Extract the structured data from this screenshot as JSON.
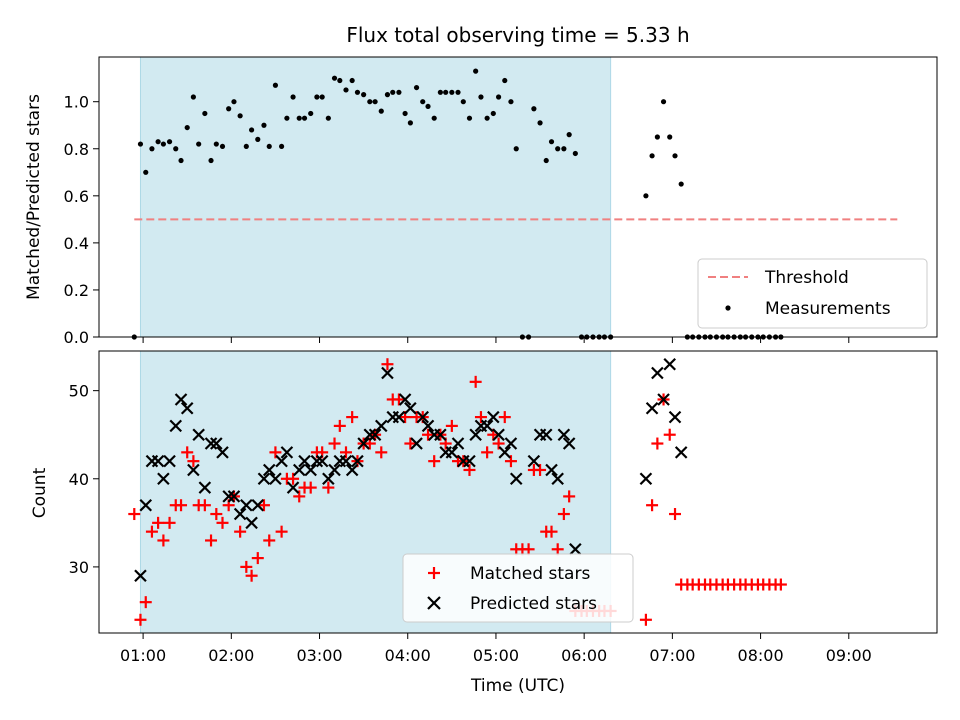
{
  "chart_data": {
    "title": "Flux total observing time = 5.33 h",
    "type": "scatter",
    "x_label": "Time (UTC)",
    "x_ticks": [
      "01:00",
      "02:00",
      "03:00",
      "04:00",
      "05:00",
      "06:00",
      "07:00",
      "08:00",
      "09:00"
    ],
    "x_tick_hours": [
      1,
      2,
      3,
      4,
      5,
      6,
      7,
      8,
      9
    ],
    "xlim": [
      0.5,
      10.0
    ],
    "shaded_interval_hours": [
      0.97,
      6.3
    ],
    "colors": {
      "shade": "#add8e6",
      "threshold": "#f08080",
      "matched": "#ff0000",
      "predicted": "#000000",
      "measurement": "#000000"
    },
    "top": {
      "ylabel": "Matched/Predicted stars",
      "ylim": [
        0,
        1.19
      ],
      "y_ticks": [
        "0.0",
        "0.2",
        "0.4",
        "0.6",
        "0.8",
        "1.0"
      ],
      "y_tick_values": [
        0,
        0.2,
        0.4,
        0.6,
        0.8,
        1.0
      ],
      "threshold": {
        "name": "Threshold",
        "value": 0.5,
        "x_range": [
          0.9,
          9.55
        ]
      },
      "measurements_name": "Measurements",
      "legend_position": "lower-right",
      "measurements": [
        [
          0.9,
          0.0
        ],
        [
          0.97,
          0.82
        ],
        [
          1.03,
          0.7
        ],
        [
          1.1,
          0.8
        ],
        [
          1.17,
          0.83
        ],
        [
          1.23,
          0.82
        ],
        [
          1.3,
          0.83
        ],
        [
          1.37,
          0.8
        ],
        [
          1.43,
          0.75
        ],
        [
          1.5,
          0.89
        ],
        [
          1.57,
          1.02
        ],
        [
          1.63,
          0.82
        ],
        [
          1.7,
          0.95
        ],
        [
          1.77,
          0.75
        ],
        [
          1.83,
          0.82
        ],
        [
          1.9,
          0.81
        ],
        [
          1.97,
          0.97
        ],
        [
          2.03,
          1.0
        ],
        [
          2.1,
          0.94
        ],
        [
          2.17,
          0.81
        ],
        [
          2.23,
          0.88
        ],
        [
          2.3,
          0.84
        ],
        [
          2.37,
          0.9
        ],
        [
          2.43,
          0.81
        ],
        [
          2.5,
          1.07
        ],
        [
          2.57,
          0.81
        ],
        [
          2.63,
          0.93
        ],
        [
          2.7,
          1.02
        ],
        [
          2.77,
          0.93
        ],
        [
          2.83,
          0.93
        ],
        [
          2.9,
          0.95
        ],
        [
          2.97,
          1.02
        ],
        [
          3.03,
          1.02
        ],
        [
          3.1,
          0.93
        ],
        [
          3.17,
          1.1
        ],
        [
          3.23,
          1.09
        ],
        [
          3.3,
          1.05
        ],
        [
          3.37,
          1.09
        ],
        [
          3.43,
          1.04
        ],
        [
          3.5,
          1.03
        ],
        [
          3.57,
          1.0
        ],
        [
          3.63,
          1.0
        ],
        [
          3.7,
          0.96
        ],
        [
          3.77,
          1.03
        ],
        [
          3.83,
          1.04
        ],
        [
          3.9,
          1.04
        ],
        [
          3.97,
          0.95
        ],
        [
          4.03,
          0.91
        ],
        [
          4.1,
          1.06
        ],
        [
          4.17,
          1.0
        ],
        [
          4.23,
          0.98
        ],
        [
          4.3,
          0.93
        ],
        [
          4.37,
          1.04
        ],
        [
          4.43,
          1.04
        ],
        [
          4.5,
          1.04
        ],
        [
          4.57,
          1.04
        ],
        [
          4.63,
          1.0
        ],
        [
          4.7,
          0.93
        ],
        [
          4.77,
          1.13
        ],
        [
          4.83,
          1.02
        ],
        [
          4.9,
          0.93
        ],
        [
          4.97,
          0.95
        ],
        [
          5.03,
          1.02
        ],
        [
          5.1,
          1.09
        ],
        [
          5.17,
          1.0
        ],
        [
          5.23,
          0.8
        ],
        [
          5.3,
          0.0
        ],
        [
          5.37,
          0.0
        ],
        [
          5.43,
          0.97
        ],
        [
          5.5,
          0.91
        ],
        [
          5.57,
          0.75
        ],
        [
          5.63,
          0.83
        ],
        [
          5.7,
          0.8
        ],
        [
          5.77,
          0.8
        ],
        [
          5.83,
          0.86
        ],
        [
          5.9,
          0.78
        ],
        [
          5.97,
          0.0
        ],
        [
          6.03,
          0.0
        ],
        [
          6.1,
          0.0
        ],
        [
          6.17,
          0.0
        ],
        [
          6.23,
          0.0
        ],
        [
          6.3,
          0.0
        ],
        [
          6.7,
          0.6
        ],
        [
          6.77,
          0.77
        ],
        [
          6.83,
          0.85
        ],
        [
          6.9,
          1.0
        ],
        [
          6.97,
          0.85
        ],
        [
          7.03,
          0.77
        ],
        [
          7.1,
          0.65
        ],
        [
          7.17,
          0.0
        ],
        [
          7.23,
          0.0
        ],
        [
          7.3,
          0.0
        ],
        [
          7.37,
          0.0
        ],
        [
          7.43,
          0.0
        ],
        [
          7.5,
          0.0
        ],
        [
          7.57,
          0.0
        ],
        [
          7.63,
          0.0
        ],
        [
          7.7,
          0.0
        ],
        [
          7.77,
          0.0
        ],
        [
          7.83,
          0.0
        ],
        [
          7.9,
          0.0
        ],
        [
          7.97,
          0.0
        ],
        [
          8.03,
          0.0
        ],
        [
          8.1,
          0.0
        ],
        [
          8.17,
          0.0
        ],
        [
          8.23,
          0.0
        ]
      ]
    },
    "bottom": {
      "ylabel": "Count",
      "ylim": [
        22.5,
        54.5
      ],
      "y_ticks": [
        "30",
        "40",
        "50"
      ],
      "y_tick_values": [
        30,
        40,
        50
      ],
      "legend_position": "lower-center",
      "matched_name": "Matched stars",
      "predicted_name": "Predicted stars",
      "matched": [
        [
          0.9,
          36
        ],
        [
          0.97,
          24
        ],
        [
          1.03,
          26
        ],
        [
          1.1,
          34
        ],
        [
          1.17,
          35
        ],
        [
          1.23,
          33
        ],
        [
          1.3,
          35
        ],
        [
          1.37,
          37
        ],
        [
          1.43,
          37
        ],
        [
          1.5,
          43
        ],
        [
          1.57,
          42
        ],
        [
          1.63,
          37
        ],
        [
          1.7,
          37
        ],
        [
          1.77,
          33
        ],
        [
          1.83,
          36
        ],
        [
          1.9,
          35
        ],
        [
          1.97,
          37
        ],
        [
          2.03,
          38
        ],
        [
          2.1,
          34
        ],
        [
          2.17,
          30
        ],
        [
          2.23,
          29
        ],
        [
          2.3,
          31
        ],
        [
          2.37,
          37
        ],
        [
          2.43,
          33
        ],
        [
          2.5,
          43
        ],
        [
          2.57,
          34
        ],
        [
          2.63,
          40
        ],
        [
          2.7,
          40
        ],
        [
          2.77,
          38
        ],
        [
          2.83,
          39
        ],
        [
          2.9,
          39
        ],
        [
          2.97,
          43
        ],
        [
          3.03,
          43
        ],
        [
          3.1,
          39
        ],
        [
          3.17,
          44
        ],
        [
          3.23,
          46
        ],
        [
          3.3,
          43
        ],
        [
          3.37,
          47
        ],
        [
          3.43,
          42
        ],
        [
          3.5,
          44
        ],
        [
          3.57,
          44
        ],
        [
          3.63,
          45
        ],
        [
          3.7,
          43
        ],
        [
          3.77,
          53
        ],
        [
          3.83,
          49
        ],
        [
          3.9,
          49
        ],
        [
          3.97,
          47
        ],
        [
          4.03,
          44
        ],
        [
          4.1,
          47
        ],
        [
          4.17,
          47
        ],
        [
          4.23,
          45
        ],
        [
          4.3,
          42
        ],
        [
          4.37,
          45
        ],
        [
          4.43,
          44
        ],
        [
          4.5,
          46
        ],
        [
          4.57,
          42
        ],
        [
          4.63,
          42
        ],
        [
          4.7,
          41
        ],
        [
          4.77,
          51
        ],
        [
          4.83,
          47
        ],
        [
          4.9,
          43
        ],
        [
          4.97,
          45
        ],
        [
          5.03,
          44
        ],
        [
          5.1,
          47
        ],
        [
          5.17,
          42
        ],
        [
          5.23,
          32
        ],
        [
          5.3,
          32
        ],
        [
          5.37,
          32
        ],
        [
          5.43,
          41
        ],
        [
          5.5,
          41
        ],
        [
          5.57,
          34
        ],
        [
          5.63,
          34
        ],
        [
          5.7,
          32
        ],
        [
          5.77,
          36
        ],
        [
          5.83,
          38
        ],
        [
          5.9,
          25
        ],
        [
          5.97,
          25
        ],
        [
          6.03,
          25
        ],
        [
          6.1,
          25
        ],
        [
          6.17,
          25
        ],
        [
          6.23,
          25
        ],
        [
          6.3,
          25
        ],
        [
          6.7,
          24
        ],
        [
          6.77,
          37
        ],
        [
          6.83,
          44
        ],
        [
          6.9,
          49
        ],
        [
          6.97,
          45
        ],
        [
          7.03,
          36
        ],
        [
          7.1,
          28
        ],
        [
          7.17,
          28
        ],
        [
          7.23,
          28
        ],
        [
          7.3,
          28
        ],
        [
          7.37,
          28
        ],
        [
          7.43,
          28
        ],
        [
          7.5,
          28
        ],
        [
          7.57,
          28
        ],
        [
          7.63,
          28
        ],
        [
          7.7,
          28
        ],
        [
          7.77,
          28
        ],
        [
          7.83,
          28
        ],
        [
          7.9,
          28
        ],
        [
          7.97,
          28
        ],
        [
          8.03,
          28
        ],
        [
          8.1,
          28
        ],
        [
          8.17,
          28
        ],
        [
          8.23,
          28
        ]
      ],
      "predicted": [
        [
          0.97,
          29
        ],
        [
          1.03,
          37
        ],
        [
          1.1,
          42
        ],
        [
          1.17,
          42
        ],
        [
          1.23,
          40
        ],
        [
          1.3,
          42
        ],
        [
          1.37,
          46
        ],
        [
          1.43,
          49
        ],
        [
          1.5,
          48
        ],
        [
          1.57,
          41
        ],
        [
          1.63,
          45
        ],
        [
          1.7,
          39
        ],
        [
          1.77,
          44
        ],
        [
          1.83,
          44
        ],
        [
          1.9,
          43
        ],
        [
          1.97,
          38
        ],
        [
          2.03,
          38
        ],
        [
          2.1,
          36
        ],
        [
          2.17,
          37
        ],
        [
          2.23,
          35
        ],
        [
          2.3,
          37
        ],
        [
          2.37,
          40
        ],
        [
          2.43,
          41
        ],
        [
          2.5,
          40
        ],
        [
          2.57,
          42
        ],
        [
          2.63,
          43
        ],
        [
          2.7,
          39
        ],
        [
          2.77,
          41
        ],
        [
          2.83,
          42
        ],
        [
          2.9,
          41
        ],
        [
          2.97,
          42
        ],
        [
          3.03,
          42
        ],
        [
          3.1,
          40
        ],
        [
          3.17,
          41
        ],
        [
          3.23,
          42
        ],
        [
          3.3,
          42
        ],
        [
          3.37,
          41
        ],
        [
          3.43,
          42
        ],
        [
          3.5,
          44
        ],
        [
          3.57,
          45
        ],
        [
          3.63,
          45
        ],
        [
          3.7,
          46
        ],
        [
          3.77,
          52
        ],
        [
          3.83,
          47
        ],
        [
          3.9,
          47
        ],
        [
          3.97,
          49
        ],
        [
          4.03,
          48
        ],
        [
          4.1,
          44
        ],
        [
          4.17,
          47
        ],
        [
          4.23,
          46
        ],
        [
          4.3,
          45
        ],
        [
          4.37,
          45
        ],
        [
          4.43,
          43
        ],
        [
          4.5,
          43
        ],
        [
          4.57,
          44
        ],
        [
          4.63,
          42
        ],
        [
          4.7,
          42
        ],
        [
          4.77,
          45
        ],
        [
          4.83,
          46
        ],
        [
          4.9,
          46
        ],
        [
          4.97,
          47
        ],
        [
          5.03,
          45
        ],
        [
          5.1,
          43
        ],
        [
          5.17,
          44
        ],
        [
          5.23,
          40
        ],
        [
          5.43,
          42
        ],
        [
          5.5,
          45
        ],
        [
          5.57,
          45
        ],
        [
          5.63,
          41
        ],
        [
          5.7,
          40
        ],
        [
          5.77,
          45
        ],
        [
          5.83,
          44
        ],
        [
          5.9,
          32
        ],
        [
          6.7,
          40
        ],
        [
          6.77,
          48
        ],
        [
          6.83,
          52
        ],
        [
          6.9,
          49
        ],
        [
          6.97,
          53
        ],
        [
          7.03,
          47
        ],
        [
          7.1,
          43
        ]
      ]
    }
  }
}
